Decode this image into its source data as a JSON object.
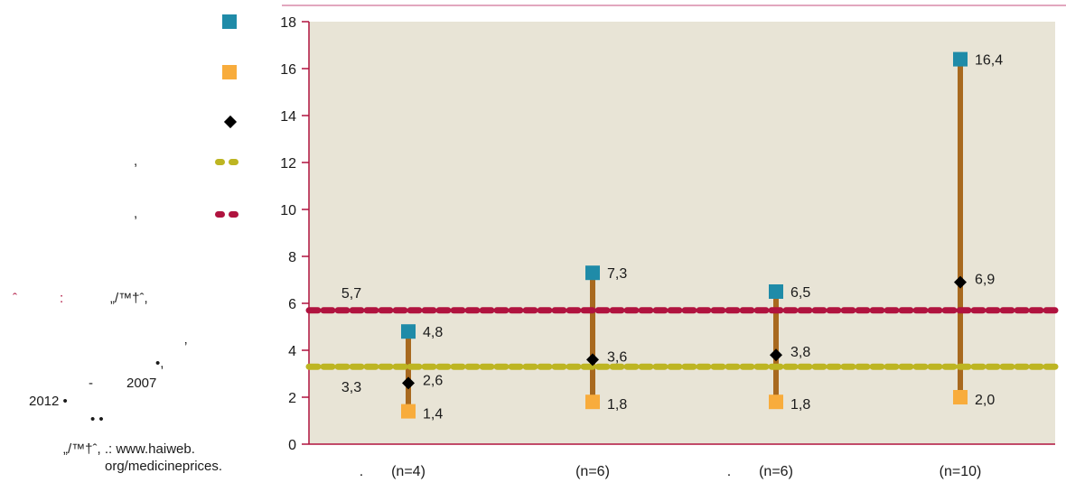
{
  "legend": {
    "items": [
      {
        "kind": "square",
        "color": "#1f8ba8"
      },
      {
        "kind": "square",
        "color": "#f8ac3c"
      },
      {
        "kind": "diamond",
        "color": "#000000"
      },
      {
        "kind": "dashed-line",
        "color": "#bdb522",
        "label_fragment": ","
      },
      {
        "kind": "dashed-line",
        "color": "#b0133f",
        "label_fragment": ","
      }
    ]
  },
  "notes": {
    "source_marker": "ˆ",
    "source_colon": ":",
    "source_glyphs": "„/™†ˆ,",
    "comma_glyph": "’",
    "bullet_comma": "•,",
    "dash": "-",
    "year_start": "2007",
    "year_end": "2012 •",
    "bullets": "•          •",
    "ref_text": "„/™†ˆ,   .: www.haiweb.",
    "ref_url": "org/medicineprices."
  },
  "chart_data": {
    "type": "range",
    "y_axis": {
      "min": 0,
      "max": 18,
      "ticks": [
        "0",
        "2",
        "4",
        "6",
        "8",
        "10",
        "12",
        "14",
        "16",
        "18"
      ]
    },
    "categories": [
      {
        "prefix": ".",
        "label": "(n=4)"
      },
      {
        "prefix": "",
        "label": "(n=6)"
      },
      {
        "prefix": ".",
        "label": "(n=6)"
      },
      {
        "prefix": "",
        "label": "(n=10)"
      }
    ],
    "series": [
      {
        "role": "max",
        "color": "#1f8ba8",
        "values": [
          4.8,
          7.3,
          6.5,
          16.4
        ],
        "labels": [
          "4,8",
          "7,3",
          "6,5",
          "16,4"
        ]
      },
      {
        "role": "median",
        "color": "#000000",
        "values": [
          2.6,
          3.6,
          3.8,
          6.9
        ],
        "labels": [
          "2,6",
          "3,6",
          "3,8",
          "6,9"
        ]
      },
      {
        "role": "min",
        "color": "#f8ac3c",
        "values": [
          1.4,
          1.8,
          1.8,
          2.0
        ],
        "labels": [
          "1,4",
          "1,8",
          "1,8",
          "2,0"
        ]
      }
    ],
    "reference_lines": [
      {
        "value": 5.7,
        "label": "5,7",
        "color": "#b0133f"
      },
      {
        "value": 3.3,
        "label": "3,3",
        "color": "#bdb522"
      }
    ],
    "range_bar_color": "#a8691f",
    "plot_background": "#e8e4d6",
    "top_rule_color": "#d98aa8"
  }
}
